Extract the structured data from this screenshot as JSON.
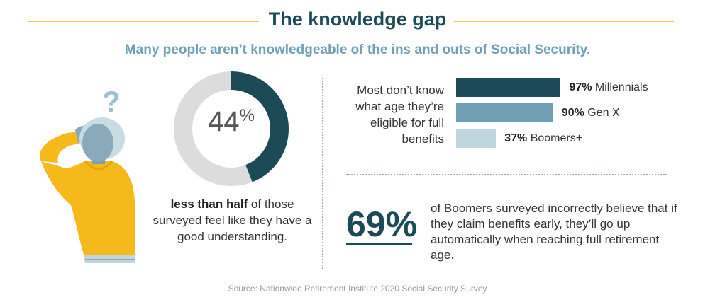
{
  "header": {
    "title": "The knowledge gap",
    "subtitle": "Many people aren’t knowledgeable of the ins and outs of Social Security."
  },
  "illustration": {
    "question_mark": "?"
  },
  "donut": {
    "value_number": "44",
    "value_unit": "%",
    "fraction": 0.44,
    "caption_bold": "less than half",
    "caption_rest": " of those surveyed feel like they have a good understanding."
  },
  "chart_data": {
    "type": "bar",
    "orientation": "horizontal",
    "description": "Most don’t know what age they’re eligible for full benefits",
    "categories": [
      "Millennials",
      "Gen X",
      "Boomers+"
    ],
    "values": [
      97,
      90,
      37
    ],
    "value_labels": [
      "97%",
      "90%",
      "37%"
    ],
    "colors": [
      "#1d4a57",
      "#6f9fb4",
      "#bfd6df"
    ],
    "xlim": [
      0,
      100
    ],
    "grid": false
  },
  "stat": {
    "value": "69%",
    "text": "of Boomers surveyed incorrectly believe that if they claim benefits early, they’ll go up automatically when reaching full retirement age."
  },
  "footer": {
    "source": "Source: Nationwide Retirement Institute 2020 Social Security Survey"
  },
  "colors": {
    "accent_yellow": "#f2c84b",
    "dark_teal": "#1d4a57",
    "mid_blue": "#6f9fb4",
    "light_blue": "#bfd6df",
    "donut_track": "#dcdcdc",
    "figure_skin": "#8aaabb",
    "figure_shirt": "#f6b91c"
  }
}
